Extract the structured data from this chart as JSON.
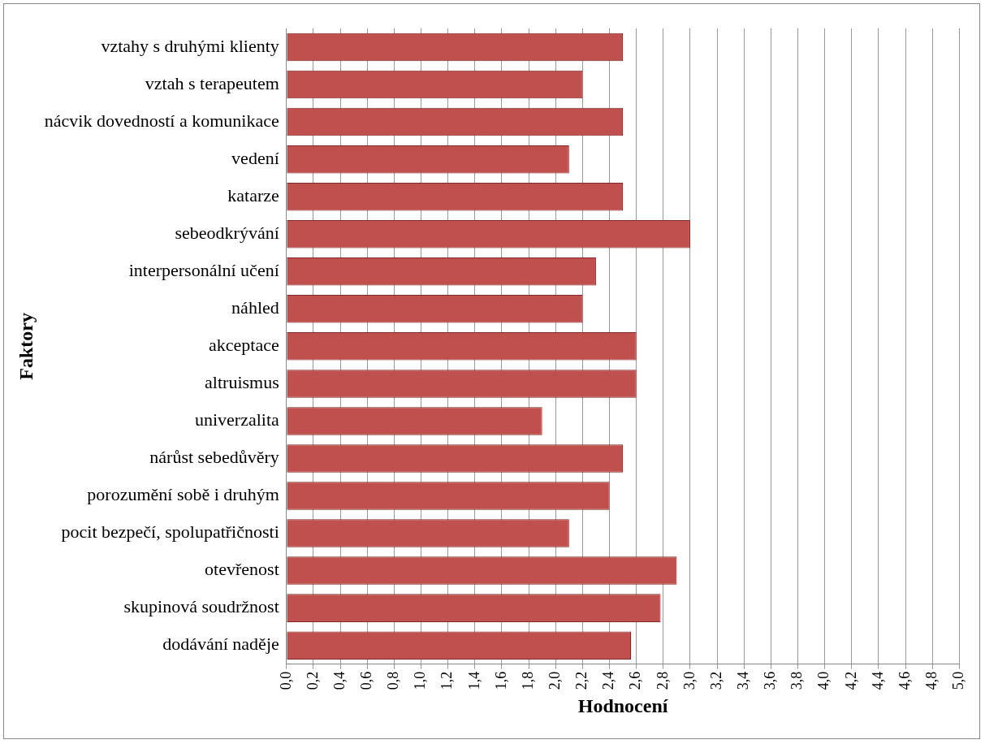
{
  "chart_data": {
    "type": "bar",
    "orientation": "horizontal",
    "xlabel": "Hodnocení",
    "ylabel": "Faktory",
    "categories": [
      "vztahy s druhými klienty",
      "vztah s terapeutem",
      "nácvik dovedností a komunikace",
      "vedení",
      "katarze",
      "sebeodkrývání",
      "interpersonální učení",
      "náhled",
      "akceptace",
      "altruismus",
      "univerzalita",
      "nárůst sebedůvěry",
      "porozumění sobě i druhým",
      "pocit bezpečí, spolupatřičnosti",
      "otevřenost",
      "skupinová soudržnost",
      "dodávání naděje"
    ],
    "values": [
      2.5,
      2.2,
      2.5,
      2.1,
      2.5,
      3.0,
      2.3,
      2.2,
      2.6,
      2.6,
      1.9,
      2.5,
      2.4,
      2.1,
      2.9,
      2.78,
      2.56
    ],
    "color": "#c0504d",
    "xlim": [
      0,
      5
    ],
    "xticks": [
      {
        "value": 0,
        "label": "0,0"
      },
      {
        "value": 0.2,
        "label": "0,2"
      },
      {
        "value": 0.4,
        "label": "0,4"
      },
      {
        "value": 0.6,
        "label": "0,6"
      },
      {
        "value": 0.8,
        "label": "0,8"
      },
      {
        "value": 1,
        "label": "1,0"
      },
      {
        "value": 1.2,
        "label": "1,2"
      },
      {
        "value": 1.4,
        "label": "1,4"
      },
      {
        "value": 1.6,
        "label": "1,6"
      },
      {
        "value": 1.8,
        "label": "1,8"
      },
      {
        "value": 2,
        "label": "2,0"
      },
      {
        "value": 2.2,
        "label": "2,2"
      },
      {
        "value": 2.4,
        "label": "2,4"
      },
      {
        "value": 2.6,
        "label": "2,6"
      },
      {
        "value": 2.8,
        "label": "2,8"
      },
      {
        "value": 3,
        "label": "3,0"
      },
      {
        "value": 3.2,
        "label": "3,2"
      },
      {
        "value": 3.4,
        "label": "3,4"
      },
      {
        "value": 3.6,
        "label": "3,6"
      },
      {
        "value": 3.8,
        "label": "3,8"
      },
      {
        "value": 4,
        "label": "4,0"
      },
      {
        "value": 4.2,
        "label": "4,2"
      },
      {
        "value": 4.4,
        "label": "4,4"
      },
      {
        "value": 4.6,
        "label": "4,6"
      },
      {
        "value": 4.8,
        "label": "4,8"
      },
      {
        "value": 5,
        "label": "5,0"
      }
    ],
    "grid": "x",
    "legend": false
  }
}
